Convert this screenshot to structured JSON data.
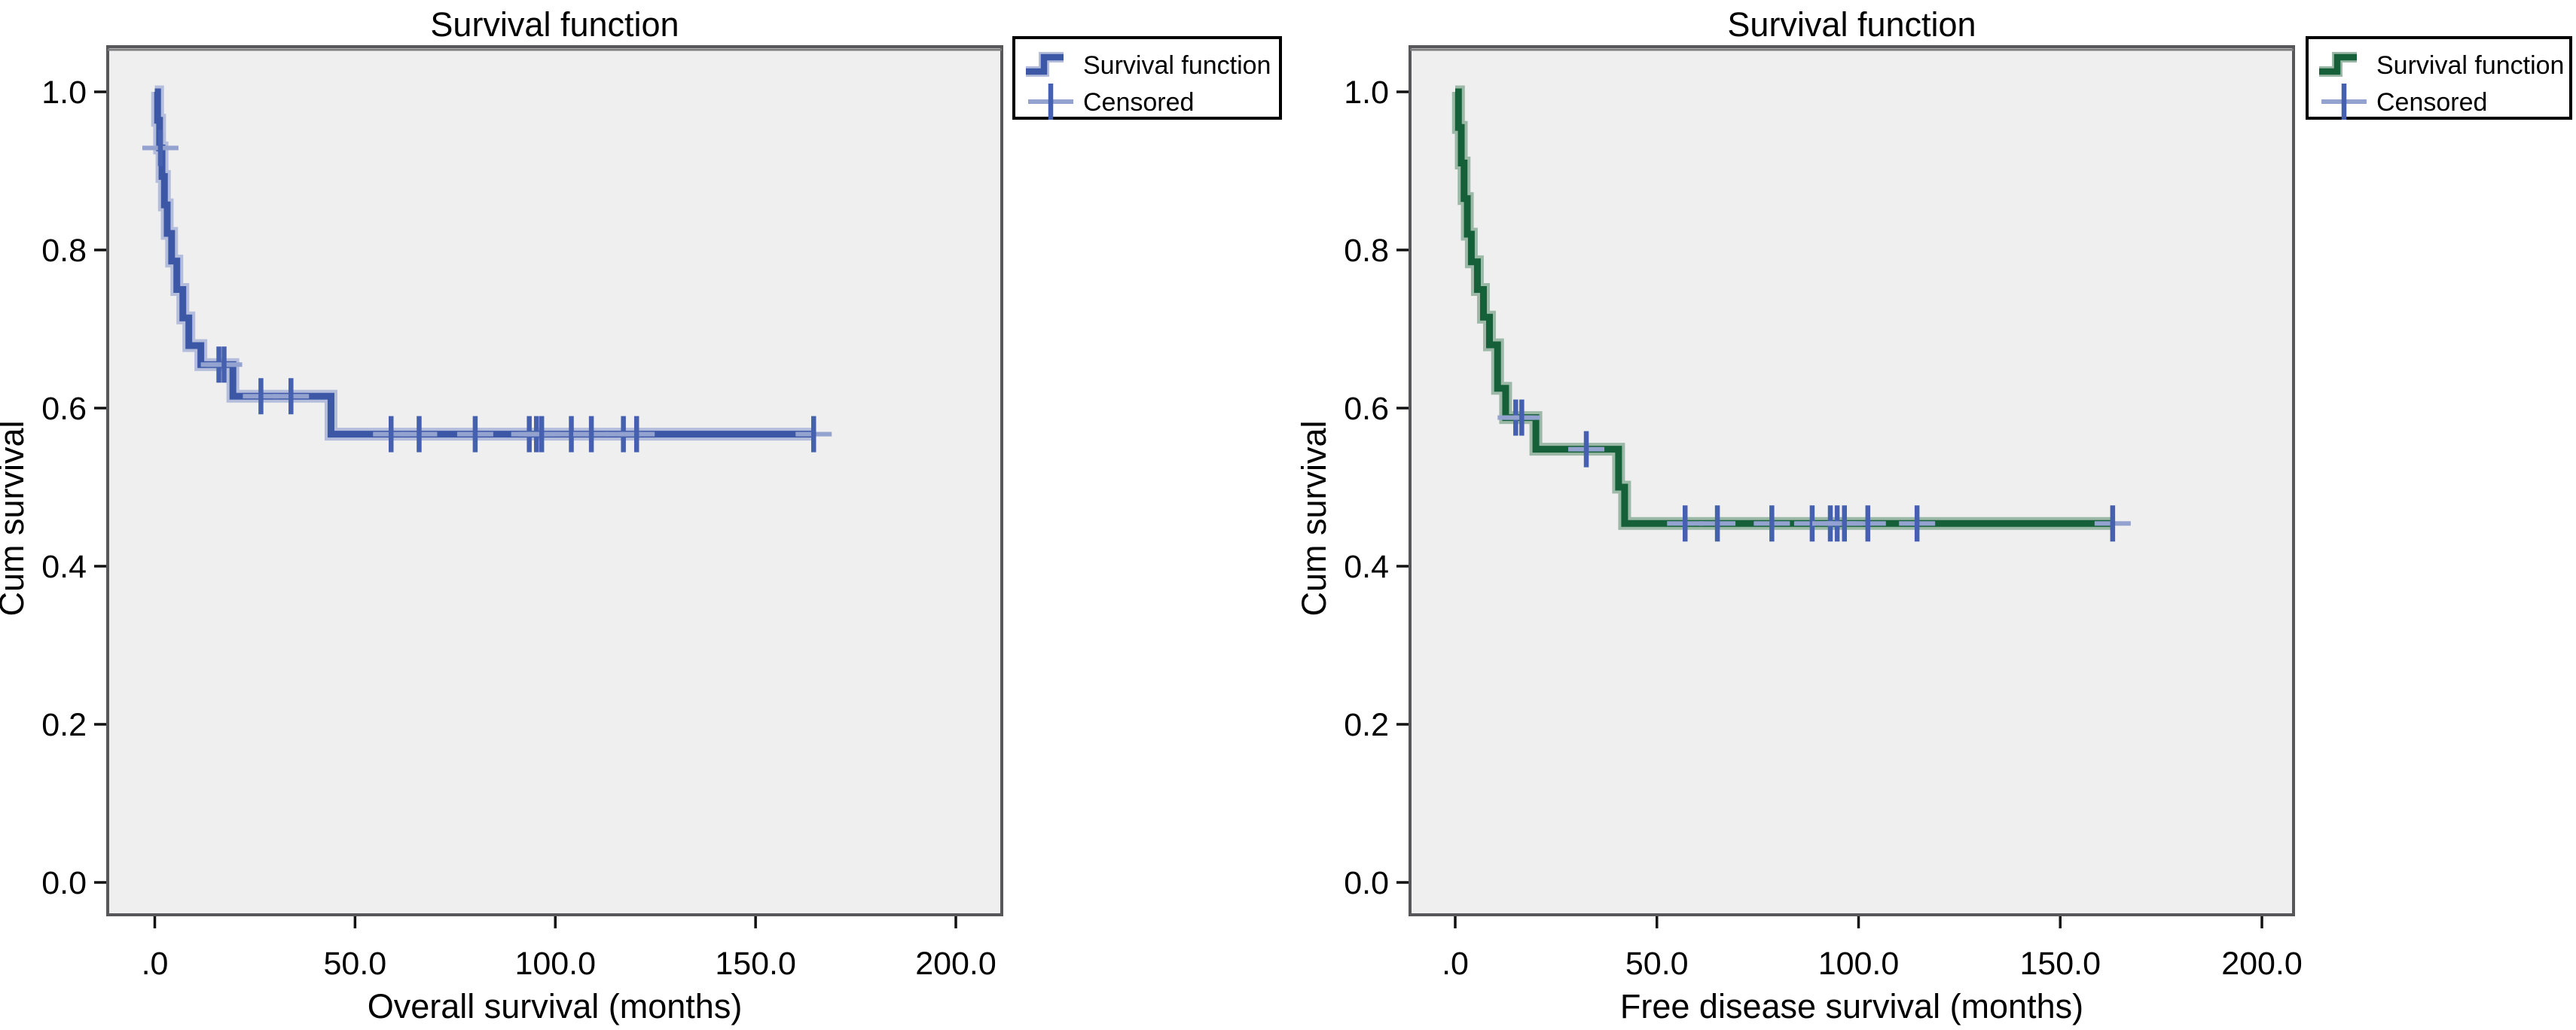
{
  "page": {
    "background": "#ffffff",
    "figure_description": "Two Kaplan-Meier survival curves"
  },
  "chart_data": [
    {
      "type": "line",
      "subtype": "kaplan-meier-step",
      "title": "Survival function",
      "xlabel": "Overall survival (months)",
      "ylabel": "Cum survival",
      "legend": {
        "position": "top-right-outside",
        "survival_label": "Survival function",
        "censored_label": "Censored"
      },
      "colors": {
        "line": "#3b57a6",
        "line_halo": "#b4bedc",
        "censor": "#4560ae",
        "censor_arm": "#93a2cf",
        "plot_bg": "#efefef",
        "plot_border": "#57575a"
      },
      "xlim": [
        0,
        200
      ],
      "ylim": [
        0.0,
        1.0
      ],
      "grid": false,
      "x_tick_labels": [
        ".0",
        "50.0",
        "100.0",
        "150.0",
        "200.0"
      ],
      "x_tick_values": [
        0,
        50,
        100,
        150,
        200
      ],
      "y_tick_labels": [
        "1.0",
        "0.8",
        "0.6",
        "0.4",
        "0.2",
        "0.0"
      ],
      "y_tick_values": [
        1.0,
        0.8,
        0.6,
        0.4,
        0.2,
        0.0
      ],
      "steps": [
        [
          0,
          1.0
        ],
        [
          0.7,
          0.964
        ],
        [
          1.2,
          0.929
        ],
        [
          1.8,
          0.893
        ],
        [
          2.4,
          0.857
        ],
        [
          3.1,
          0.821
        ],
        [
          4.2,
          0.786
        ],
        [
          5.5,
          0.75
        ],
        [
          7,
          0.714
        ],
        [
          8.5,
          0.679
        ],
        [
          11.5,
          0.655
        ],
        [
          19.5,
          0.615
        ],
        [
          44,
          0.567
        ]
      ],
      "end_time": 164.5,
      "censored": [
        [
          1.4,
          0.929
        ],
        [
          16,
          0.655
        ],
        [
          17.3,
          0.655
        ],
        [
          26.5,
          0.615
        ],
        [
          34,
          0.615
        ],
        [
          59,
          0.567
        ],
        [
          66,
          0.567
        ],
        [
          80,
          0.567
        ],
        [
          93.5,
          0.567
        ],
        [
          95.3,
          0.567
        ],
        [
          96.6,
          0.567
        ],
        [
          104,
          0.567
        ],
        [
          109,
          0.567
        ],
        [
          117,
          0.567
        ],
        [
          120.3,
          0.567
        ],
        [
          164.5,
          0.567
        ]
      ]
    },
    {
      "type": "line",
      "subtype": "kaplan-meier-step",
      "title": "Survival function",
      "xlabel": "Free disease survival (months)",
      "ylabel": "Cum survival",
      "legend": {
        "position": "top-right-outside",
        "survival_label": "Survival function",
        "censored_label": "Censored"
      },
      "colors": {
        "line": "#156038",
        "line_halo": "#9cb9a8",
        "censor": "#4560ae",
        "censor_arm": "#93a2cf",
        "plot_bg": "#efefef",
        "plot_border": "#57575a"
      },
      "xlim": [
        0,
        200
      ],
      "ylim": [
        0.0,
        1.0
      ],
      "grid": false,
      "x_tick_labels": [
        ".0",
        "50.0",
        "100.0",
        "150.0",
        "200.0"
      ],
      "x_tick_values": [
        0,
        50,
        100,
        150,
        200
      ],
      "y_tick_labels": [
        "1.0",
        "0.8",
        "0.6",
        "0.4",
        "0.2",
        "0.0"
      ],
      "y_tick_values": [
        1.0,
        0.8,
        0.6,
        0.4,
        0.2,
        0.0
      ],
      "steps": [
        [
          0,
          1.0
        ],
        [
          0.8,
          0.955
        ],
        [
          1.5,
          0.91
        ],
        [
          2.2,
          0.865
        ],
        [
          3,
          0.82
        ],
        [
          4,
          0.785
        ],
        [
          5.5,
          0.75
        ],
        [
          7,
          0.715
        ],
        [
          8.5,
          0.68
        ],
        [
          10.5,
          0.625
        ],
        [
          12.5,
          0.588
        ],
        [
          20,
          0.548
        ],
        [
          40.5,
          0.5
        ],
        [
          42,
          0.454
        ]
      ],
      "end_time": 163,
      "censored": [
        [
          15,
          0.588
        ],
        [
          16.5,
          0.588
        ],
        [
          32.5,
          0.548
        ],
        [
          57,
          0.454
        ],
        [
          65,
          0.454
        ],
        [
          78.5,
          0.454
        ],
        [
          88.5,
          0.454
        ],
        [
          93,
          0.454
        ],
        [
          94.7,
          0.454
        ],
        [
          96.5,
          0.454
        ],
        [
          102.3,
          0.454
        ],
        [
          114.5,
          0.454
        ],
        [
          163,
          0.454
        ]
      ]
    }
  ]
}
